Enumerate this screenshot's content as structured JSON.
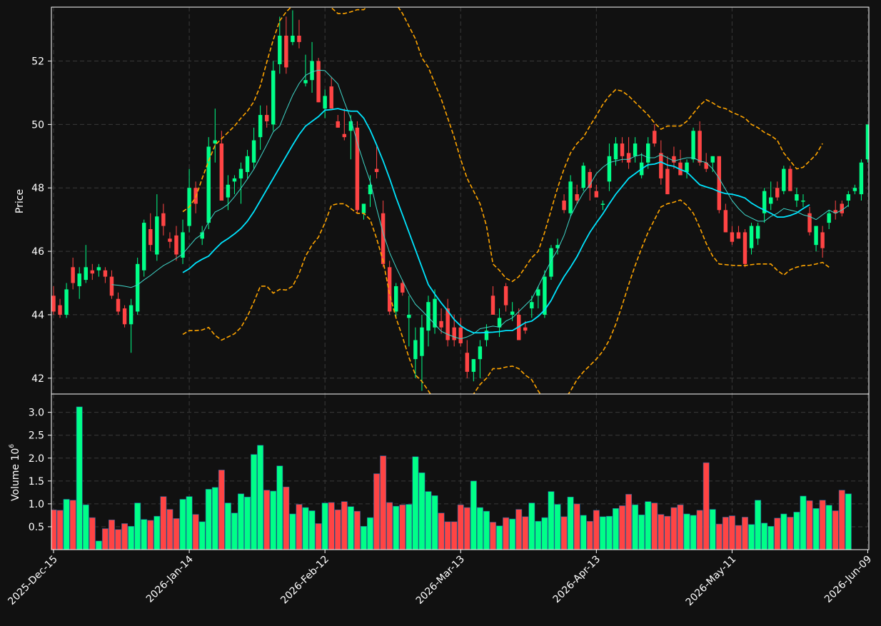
{
  "chart_data": {
    "type": "candlestick",
    "price_ylabel": "Price",
    "volume_ylabel": "Volume",
    "volume_exponent": "6",
    "price_ylim": [
      41.5,
      53.7
    ],
    "price_yticks": [
      "42",
      "44",
      "46",
      "48",
      "50",
      "52"
    ],
    "volume_ylim": [
      0,
      3.4
    ],
    "volume_yticks": [
      "0.5",
      "1.0",
      "1.5",
      "2.0",
      "2.5",
      "3.0"
    ],
    "volume_unit_scale": 1000000,
    "x_tick_labels": [
      {
        "label": "2025-Dec-15",
        "index": 0
      },
      {
        "label": "2026-Jan-14",
        "index": 21
      },
      {
        "label": "2026-Feb-12",
        "index": 42
      },
      {
        "label": "2026-Mar-13",
        "index": 63
      },
      {
        "label": "2026-Apr-13",
        "index": 84
      },
      {
        "label": "2026-May-11",
        "index": 105
      },
      {
        "label": "2026-Jun-09",
        "index": 126
      }
    ],
    "grid": true,
    "colors": {
      "background": "#111111",
      "up": "#00ff88",
      "down": "#ff4444",
      "ma_fast": "#3fd6c9",
      "ma_slow": "#00e5ff",
      "bands": "#ffa500",
      "grid": "#3a3a3a",
      "axes": "#ffffff"
    },
    "ohlc": [
      [
        44.6,
        44.9,
        44.0,
        44.1
      ],
      [
        44.3,
        44.5,
        43.9,
        44.0
      ],
      [
        44.0,
        45.0,
        43.9,
        44.8
      ],
      [
        45.5,
        45.8,
        44.8,
        45.0
      ],
      [
        44.9,
        45.5,
        44.5,
        45.3
      ],
      [
        45.1,
        46.2,
        45.0,
        45.5
      ],
      [
        45.4,
        45.6,
        45.1,
        45.3
      ],
      [
        45.4,
        45.6,
        45.2,
        45.5
      ],
      [
        45.4,
        45.5,
        45.0,
        45.2
      ],
      [
        45.2,
        45.4,
        44.5,
        44.6
      ],
      [
        44.5,
        44.7,
        44.0,
        44.1
      ],
      [
        44.2,
        44.3,
        43.6,
        43.7
      ],
      [
        43.7,
        44.5,
        42.8,
        44.3
      ],
      [
        44.1,
        45.8,
        44.0,
        45.6
      ],
      [
        45.4,
        47.0,
        45.2,
        46.9
      ],
      [
        46.7,
        47.2,
        46.0,
        46.2
      ],
      [
        45.9,
        47.8,
        45.7,
        47.1
      ],
      [
        47.2,
        47.5,
        46.5,
        46.8
      ],
      [
        46.4,
        46.6,
        46.1,
        46.3
      ],
      [
        46.5,
        46.8,
        45.7,
        45.9
      ],
      [
        45.8,
        47.0,
        45.6,
        46.6
      ],
      [
        46.8,
        48.6,
        46.6,
        48.0
      ],
      [
        48.0,
        48.2,
        47.2,
        47.5
      ],
      [
        46.4,
        46.8,
        46.2,
        46.6
      ],
      [
        46.9,
        49.6,
        46.7,
        49.3
      ],
      [
        49.4,
        50.5,
        48.8,
        49.5
      ],
      [
        49.4,
        49.8,
        47.6,
        47.6
      ],
      [
        47.7,
        48.4,
        47.3,
        48.1
      ],
      [
        48.2,
        48.4,
        47.8,
        48.3
      ],
      [
        48.3,
        48.8,
        47.5,
        48.6
      ],
      [
        48.5,
        49.2,
        48.3,
        49.0
      ],
      [
        48.8,
        49.9,
        48.6,
        49.5
      ],
      [
        49.6,
        50.6,
        49.2,
        50.3
      ],
      [
        50.3,
        50.6,
        49.9,
        50.1
      ],
      [
        50.0,
        52.0,
        49.8,
        51.7
      ],
      [
        51.9,
        53.4,
        51.6,
        52.8
      ],
      [
        52.8,
        53.4,
        51.6,
        51.8
      ],
      [
        52.6,
        53.6,
        52.5,
        52.8
      ],
      [
        52.8,
        53.3,
        52.4,
        52.6
      ],
      [
        51.3,
        52.2,
        51.2,
        51.4
      ],
      [
        51.4,
        52.6,
        51.0,
        52.0
      ],
      [
        52.0,
        52.1,
        50.7,
        50.7
      ],
      [
        50.5,
        51.1,
        50.2,
        50.9
      ],
      [
        51.2,
        51.5,
        50.6,
        50.5
      ],
      [
        50.1,
        50.3,
        49.9,
        49.9
      ],
      [
        49.7,
        50.5,
        49.5,
        49.6
      ],
      [
        49.8,
        50.3,
        48.9,
        50.1
      ],
      [
        49.9,
        50.1,
        47.2,
        47.3
      ],
      [
        47.2,
        47.5,
        47.0,
        47.5
      ],
      [
        47.8,
        48.4,
        47.4,
        48.1
      ],
      [
        48.6,
        49.3,
        48.3,
        48.5
      ],
      [
        47.2,
        47.6,
        45.5,
        45.6
      ],
      [
        45.5,
        45.7,
        44.0,
        44.1
      ],
      [
        44.1,
        45.0,
        43.9,
        44.9
      ],
      [
        45.0,
        45.1,
        44.6,
        44.7
      ],
      [
        43.9,
        44.6,
        43.0,
        44.0
      ],
      [
        42.6,
        43.6,
        42.0,
        43.2
      ],
      [
        42.7,
        44.0,
        41.6,
        43.6
      ],
      [
        43.5,
        44.6,
        43.0,
        44.4
      ],
      [
        43.6,
        44.8,
        43.4,
        44.5
      ],
      [
        43.8,
        44.2,
        43.4,
        43.6
      ],
      [
        44.2,
        44.5,
        43.0,
        43.2
      ],
      [
        43.6,
        44.0,
        43.0,
        43.2
      ],
      [
        43.6,
        43.9,
        43.0,
        43.1
      ],
      [
        42.8,
        43.2,
        42.0,
        42.2
      ],
      [
        42.2,
        42.6,
        41.9,
        42.6
      ],
      [
        42.6,
        43.2,
        42.0,
        43.0
      ],
      [
        43.2,
        43.7,
        43.0,
        43.5
      ],
      [
        44.6,
        44.9,
        44.0,
        44.0
      ],
      [
        43.6,
        44.2,
        43.3,
        43.9
      ],
      [
        44.9,
        45.0,
        44.1,
        44.3
      ],
      [
        44.0,
        44.4,
        43.8,
        44.1
      ],
      [
        44.0,
        44.2,
        43.2,
        43.2
      ],
      [
        43.6,
        43.8,
        43.4,
        43.5
      ],
      [
        44.2,
        44.6,
        43.9,
        44.4
      ],
      [
        44.6,
        44.9,
        44.2,
        44.8
      ],
      [
        44.0,
        45.4,
        43.9,
        45.2
      ],
      [
        45.2,
        46.2,
        45.1,
        46.1
      ],
      [
        46.1,
        46.4,
        45.9,
        46.2
      ],
      [
        47.6,
        47.8,
        47.2,
        47.3
      ],
      [
        47.2,
        48.4,
        47.1,
        48.2
      ],
      [
        47.8,
        48.1,
        47.5,
        47.6
      ],
      [
        48.0,
        48.8,
        47.9,
        48.7
      ],
      [
        48.5,
        48.6,
        47.6,
        48.0
      ],
      [
        47.9,
        48.1,
        47.7,
        47.7
      ],
      [
        47.5,
        47.6,
        47.3,
        47.5
      ],
      [
        48.2,
        49.4,
        47.9,
        49.0
      ],
      [
        48.9,
        49.6,
        48.7,
        49.4
      ],
      [
        49.4,
        49.6,
        48.8,
        49.0
      ],
      [
        49.1,
        49.6,
        48.6,
        48.8
      ],
      [
        49.0,
        49.6,
        48.8,
        49.4
      ],
      [
        48.4,
        49.1,
        48.3,
        48.8
      ],
      [
        48.8,
        49.6,
        48.6,
        49.4
      ],
      [
        49.8,
        50.0,
        49.3,
        49.4
      ],
      [
        49.1,
        49.5,
        48.1,
        48.3
      ],
      [
        48.6,
        49.0,
        47.8,
        47.8
      ],
      [
        49.0,
        49.3,
        48.6,
        48.8
      ],
      [
        48.8,
        49.2,
        48.4,
        48.4
      ],
      [
        48.5,
        48.9,
        48.3,
        48.8
      ],
      [
        48.9,
        49.9,
        48.8,
        49.8
      ],
      [
        49.8,
        50.1,
        48.7,
        48.8
      ],
      [
        48.8,
        49.1,
        48.5,
        48.6
      ],
      [
        48.8,
        49.0,
        48.5,
        49.0
      ],
      [
        49.0,
        49.0,
        47.2,
        47.3
      ],
      [
        47.3,
        47.5,
        46.6,
        46.6
      ],
      [
        46.6,
        46.8,
        46.2,
        46.3
      ],
      [
        46.6,
        46.8,
        46.4,
        46.4
      ],
      [
        46.6,
        46.7,
        45.5,
        45.6
      ],
      [
        46.1,
        46.9,
        45.9,
        46.8
      ],
      [
        46.4,
        46.9,
        46.2,
        46.8
      ],
      [
        47.2,
        48.0,
        46.9,
        47.9
      ],
      [
        47.5,
        48.2,
        47.3,
        47.7
      ],
      [
        48.0,
        48.2,
        47.6,
        47.7
      ],
      [
        47.9,
        48.7,
        47.8,
        48.6
      ],
      [
        48.6,
        48.7,
        47.9,
        47.9
      ],
      [
        47.6,
        48.0,
        47.4,
        47.8
      ],
      [
        47.6,
        47.8,
        47.4,
        47.6
      ],
      [
        47.2,
        47.4,
        46.5,
        46.6
      ],
      [
        46.2,
        46.8,
        46.0,
        46.8
      ],
      [
        46.6,
        46.8,
        45.8,
        46.1
      ],
      [
        46.9,
        47.3,
        46.7,
        47.2
      ],
      [
        47.3,
        47.6,
        47.0,
        47.2
      ],
      [
        47.5,
        47.6,
        47.1,
        47.2
      ],
      [
        47.6,
        47.9,
        47.4,
        47.8
      ],
      [
        47.9,
        48.1,
        47.8,
        48.0
      ],
      [
        47.8,
        48.9,
        47.6,
        48.8
      ],
      [
        48.9,
        50.0,
        48.8,
        50.0
      ]
    ],
    "volume": [
      0.87,
      0.86,
      1.1,
      1.08,
      3.12,
      0.98,
      0.7,
      0.19,
      0.46,
      0.65,
      0.44,
      0.57,
      0.51,
      1.02,
      0.66,
      0.64,
      0.73,
      1.16,
      0.88,
      0.68,
      1.1,
      1.16,
      0.77,
      0.61,
      1.32,
      1.36,
      1.74,
      1.02,
      0.8,
      1.22,
      1.15,
      2.08,
      2.28,
      1.3,
      1.28,
      1.83,
      1.37,
      0.78,
      0.99,
      0.92,
      0.85,
      0.57,
      1.02,
      1.03,
      0.87,
      1.05,
      0.94,
      0.84,
      0.51,
      0.7,
      1.66,
      2.05,
      1.03,
      0.95,
      0.98,
      0.99,
      2.03,
      1.68,
      1.27,
      1.18,
      0.8,
      0.61,
      0.61,
      0.98,
      0.92,
      1.5,
      0.92,
      0.84,
      0.6,
      0.52,
      0.7,
      0.67,
      0.88,
      0.72,
      1.02,
      0.62,
      0.7,
      1.27,
      0.99,
      0.72,
      1.15,
      1.0,
      0.75,
      0.62,
      0.86,
      0.72,
      0.73,
      0.9,
      0.96,
      1.21,
      0.98,
      0.76,
      1.05,
      1.02,
      0.77,
      0.73,
      0.92,
      0.98,
      0.78,
      0.75,
      0.86,
      1.9,
      0.88,
      0.56,
      0.71,
      0.74,
      0.53,
      0.71,
      0.55,
      1.08,
      0.58,
      0.51,
      0.69,
      0.78,
      0.71,
      0.82,
      1.17,
      1.07,
      0.9,
      1.08,
      0.97,
      0.85,
      1.3,
      1.22
    ],
    "ma_fast": [
      null,
      null,
      null,
      null,
      null,
      null,
      null,
      null,
      null,
      44.95,
      44.93,
      44.9,
      44.86,
      44.94,
      45.1,
      45.24,
      45.4,
      45.55,
      45.66,
      45.78,
      45.92,
      46.16,
      46.4,
      46.54,
      46.93,
      47.24,
      47.34,
      47.48,
      47.72,
      47.99,
      48.28,
      48.59,
      48.97,
      49.36,
      49.77,
      49.95,
      50.45,
      50.92,
      51.29,
      51.55,
      51.66,
      51.71,
      51.7,
      51.49,
      51.28,
      50.71,
      50.18,
      49.42,
      48.79,
      48.2,
      47.35,
      46.57,
      45.96,
      45.5,
      45.08,
      44.66,
      44.33,
      44.13,
      43.92,
      43.7,
      43.48,
      43.38,
      43.3,
      43.24,
      43.3,
      43.4,
      43.56,
      43.6,
      43.64,
      43.61,
      43.8,
      43.9,
      44.1,
      44.3,
      44.5,
      44.89,
      45.3,
      45.7,
      46.05,
      46.5,
      47.1,
      47.5,
      47.85,
      48.1,
      48.45,
      48.65,
      48.8,
      48.85,
      48.9,
      48.9,
      49.0,
      49.05,
      48.95,
      48.95,
      49.05,
      48.95,
      48.85,
      48.9,
      48.95,
      48.95,
      48.85,
      48.8,
      48.6,
      48.3,
      47.95,
      47.6,
      47.35,
      47.15,
      47.05,
      46.95,
      46.95,
      47.1,
      47.2,
      47.35,
      47.3,
      47.25,
      47.15,
      47.1,
      47.0,
      47.15,
      47.3,
      47.2,
      47.3,
      47.45
    ],
    "ma_slow": [
      null,
      null,
      null,
      null,
      null,
      null,
      null,
      null,
      null,
      null,
      null,
      null,
      null,
      null,
      null,
      null,
      null,
      null,
      null,
      null,
      45.33,
      45.45,
      45.63,
      45.75,
      45.85,
      46.07,
      46.27,
      46.4,
      46.55,
      46.72,
      46.95,
      47.25,
      47.6,
      47.95,
      48.3,
      48.65,
      49.0,
      49.35,
      49.68,
      49.95,
      50.1,
      50.25,
      50.45,
      50.47,
      50.5,
      50.45,
      50.42,
      50.42,
      50.2,
      49.82,
      49.35,
      48.85,
      48.3,
      47.7,
      47.15,
      46.6,
      46.05,
      45.5,
      44.95,
      44.65,
      44.37,
      44.12,
      43.85,
      43.65,
      43.52,
      43.43,
      43.43,
      43.44,
      43.45,
      43.47,
      43.5,
      43.5,
      43.62,
      43.75,
      43.8,
      43.95,
      44.15,
      44.45,
      44.85,
      45.2,
      45.5,
      45.83,
      46.23,
      46.6,
      46.9,
      47.18,
      47.5,
      47.8,
      48.05,
      48.3,
      48.45,
      48.6,
      48.73,
      48.75,
      48.82,
      48.72,
      48.68,
      48.58,
      48.5,
      48.3,
      48.1,
      48.03,
      47.97,
      47.88,
      47.82,
      47.8,
      47.75,
      47.68,
      47.52,
      47.4,
      47.3,
      47.2,
      47.08,
      47.08,
      47.13,
      47.21,
      47.35,
      47.47
    ],
    "band_upper": [
      null,
      null,
      null,
      null,
      null,
      null,
      null,
      null,
      null,
      null,
      null,
      null,
      null,
      null,
      null,
      null,
      null,
      null,
      null,
      null,
      47.25,
      47.4,
      47.7,
      48.3,
      48.85,
      49.35,
      49.55,
      49.75,
      49.95,
      50.2,
      50.42,
      50.72,
      51.22,
      51.97,
      52.67,
      53.27,
      53.55,
      53.75,
      53.8,
      53.9,
      53.95,
      53.98,
      53.88,
      53.68,
      53.5,
      53.5,
      53.55,
      53.62,
      53.62,
      53.8,
      53.98,
      54.02,
      54.0,
      53.8,
      53.5,
      53.1,
      52.7,
      52.1,
      51.8,
      51.3,
      50.8,
      50.2,
      49.6,
      48.9,
      48.3,
      47.9,
      47.5,
      46.8,
      45.6,
      45.4,
      45.15,
      45.05,
      45.2,
      45.5,
      45.8,
      46.0,
      46.6,
      47.3,
      48.0,
      48.6,
      49.1,
      49.4,
      49.6,
      49.95,
      50.28,
      50.63,
      50.9,
      51.1,
      51.05,
      50.9,
      50.7,
      50.5,
      50.3,
      50.05,
      49.85,
      49.95,
      49.95,
      49.95,
      50.1,
      50.35,
      50.6,
      50.78,
      50.68,
      50.55,
      50.5,
      50.38,
      50.3,
      50.2,
      50.0,
      49.9,
      49.75,
      49.65,
      49.5,
      49.1,
      48.85,
      48.6,
      48.65,
      48.85,
      49.05,
      49.4
    ],
    "band_lower": [
      null,
      null,
      null,
      null,
      null,
      null,
      null,
      null,
      null,
      null,
      null,
      null,
      null,
      null,
      null,
      null,
      null,
      null,
      null,
      null,
      43.38,
      43.5,
      43.5,
      43.52,
      43.6,
      43.35,
      43.2,
      43.3,
      43.4,
      43.6,
      43.95,
      44.4,
      44.9,
      44.9,
      44.68,
      44.8,
      44.78,
      44.9,
      45.3,
      45.85,
      46.2,
      46.45,
      46.9,
      47.45,
      47.5,
      47.5,
      47.35,
      47.2,
      47.2,
      47.0,
      46.4,
      45.7,
      44.65,
      43.9,
      43.3,
      42.65,
      42.1,
      41.9,
      41.6,
      41.3,
      41.1,
      41.0,
      41.0,
      41.1,
      41.3,
      41.5,
      41.8,
      42.0,
      42.3,
      42.3,
      42.35,
      42.38,
      42.3,
      42.1,
      41.95,
      41.6,
      41.3,
      41.0,
      40.9,
      41.3,
      41.6,
      41.95,
      42.2,
      42.4,
      42.6,
      42.85,
      43.2,
      43.7,
      44.3,
      44.95,
      45.55,
      46.1,
      46.6,
      47.0,
      47.4,
      47.5,
      47.55,
      47.62,
      47.45,
      47.2,
      46.75,
      46.25,
      45.85,
      45.6,
      45.58,
      45.56,
      45.55,
      45.55,
      45.58,
      45.6,
      45.6,
      45.6,
      45.4,
      45.25,
      45.42,
      45.5,
      45.55,
      45.56,
      45.6,
      45.65,
      45.5
    ]
  }
}
